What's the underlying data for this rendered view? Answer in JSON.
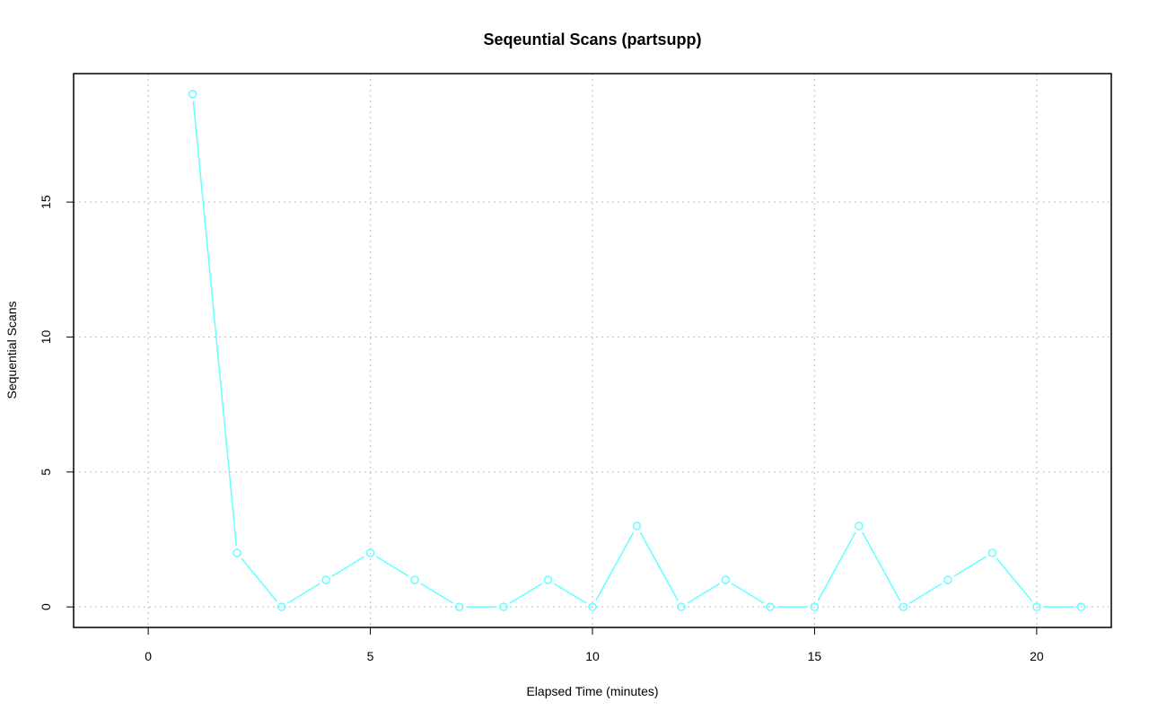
{
  "chart_data": {
    "type": "line",
    "title": "Seqeuntial Scans (partsupp)",
    "xlabel": "Elapsed Time (minutes)",
    "ylabel": "Sequential Scans",
    "xlim": [
      -1.68,
      21.68
    ],
    "ylim": [
      -0.76,
      19.76
    ],
    "x_ticks": [
      0,
      5,
      10,
      15,
      20
    ],
    "y_ticks": [
      0,
      5,
      10,
      15
    ],
    "grid": true,
    "series": [
      {
        "color": "#66ffff",
        "x": [
          1,
          2,
          3,
          4,
          5,
          6,
          7,
          8,
          9,
          10,
          11,
          12,
          13,
          14,
          15,
          16,
          17,
          18,
          19,
          20,
          21
        ],
        "y": [
          19,
          2,
          0,
          1,
          2,
          1,
          0,
          0,
          1,
          0,
          3,
          0,
          1,
          0,
          0,
          3,
          0,
          1,
          2,
          0,
          0
        ]
      }
    ]
  }
}
